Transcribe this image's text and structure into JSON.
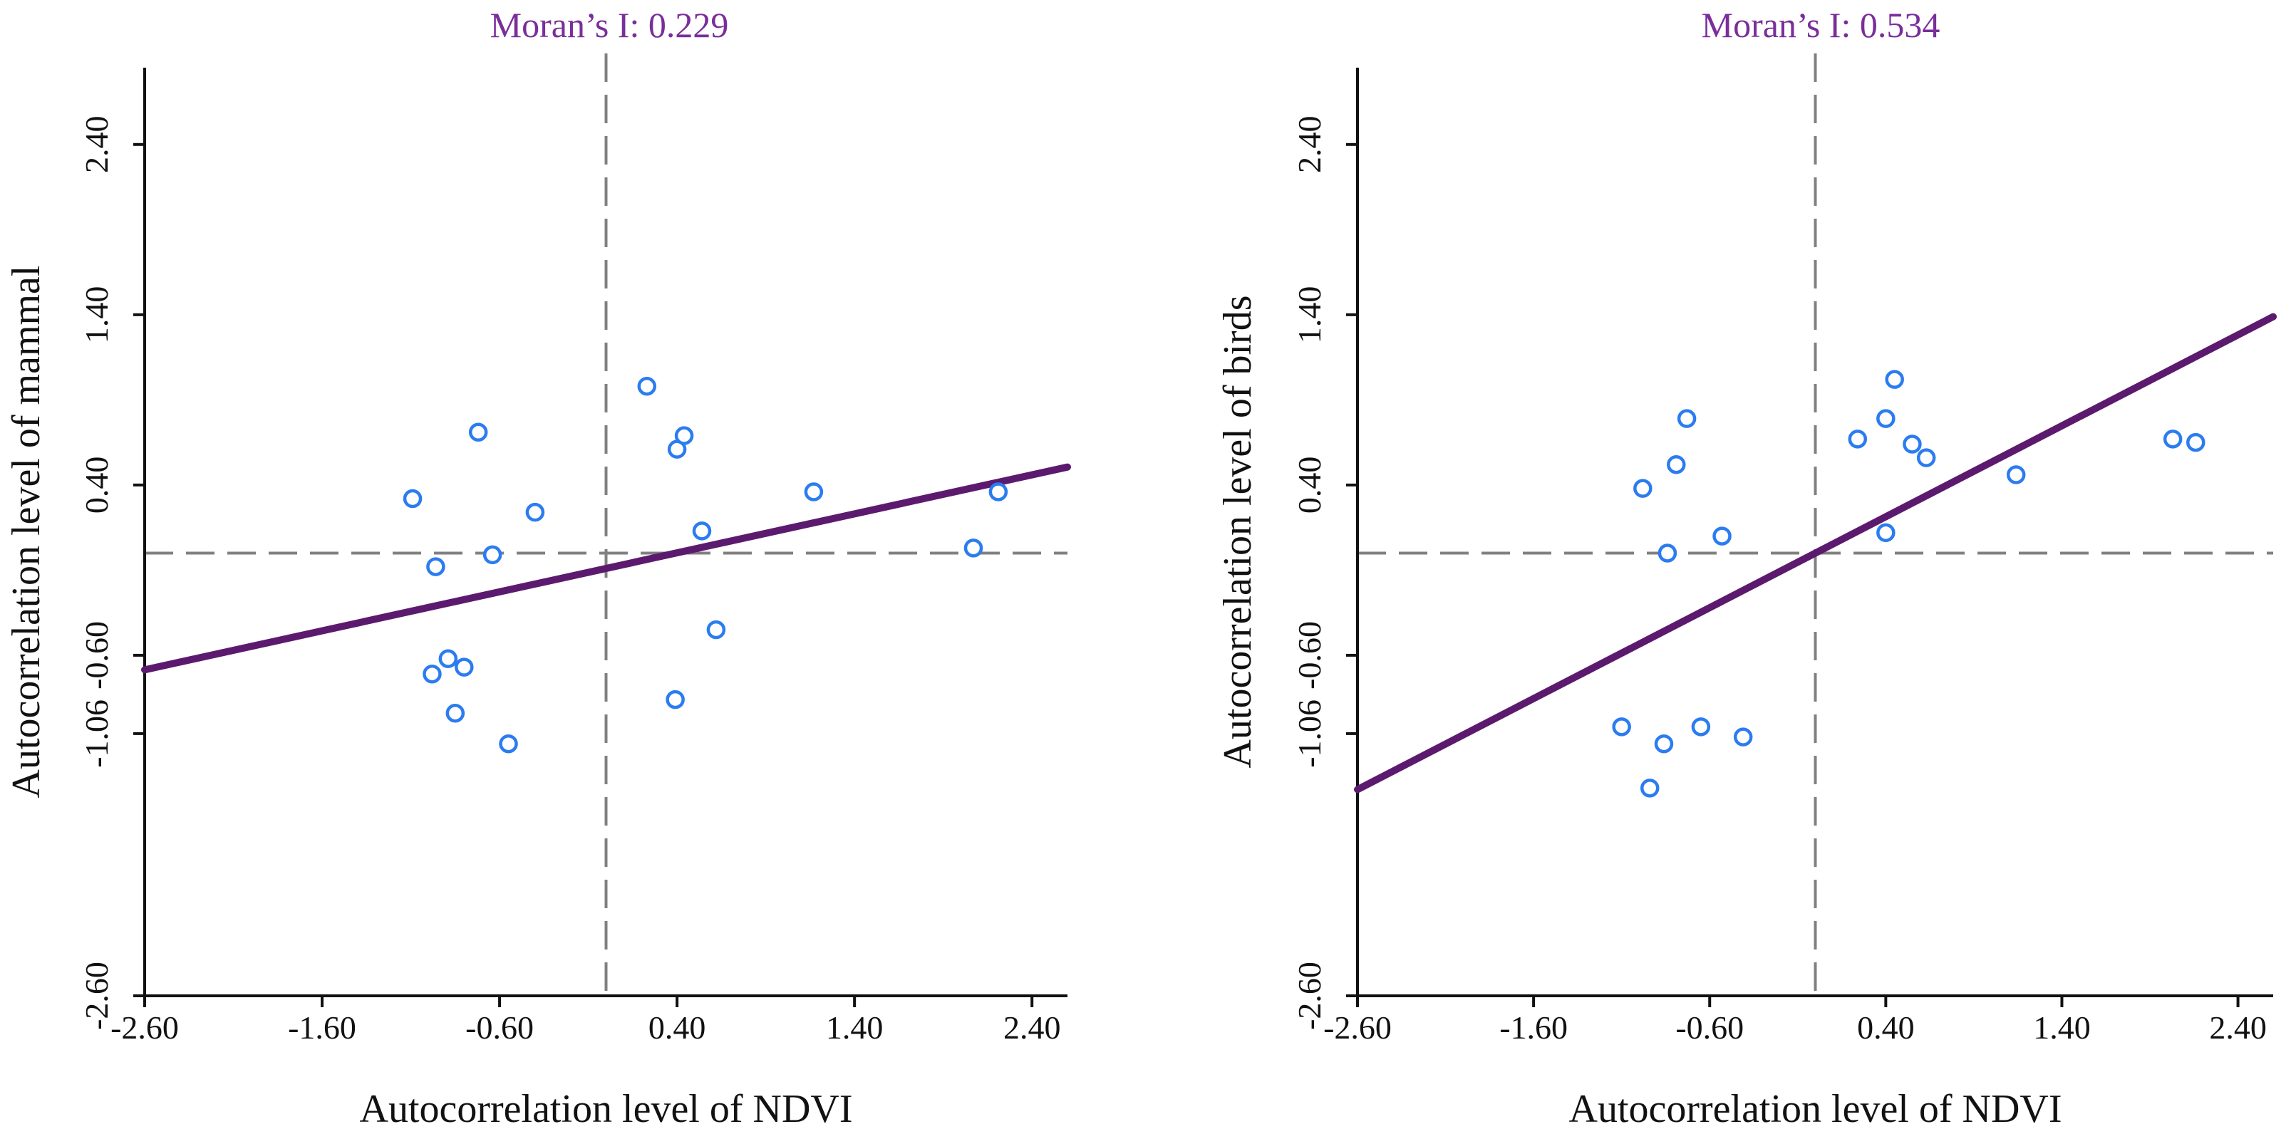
{
  "chart_data": [
    {
      "type": "scatter",
      "title": "Moran’s I: 0.229",
      "xlabel": "Autocorrelation level of NDVI",
      "ylabel": "Autocorrelation level of mammal",
      "xlim": [
        -2.6,
        2.6
      ],
      "ylim": [
        -2.6,
        2.6
      ],
      "xticks": [
        -2.6,
        -1.6,
        -0.6,
        0.4,
        1.4,
        2.4
      ],
      "xtick_labels": [
        "-2.60",
        "-1.60",
        "-0.60",
        "0.40",
        "1.40",
        "2.40"
      ],
      "yticks": [
        -2.6,
        -1.06,
        -0.6,
        0.4,
        1.4,
        2.4
      ],
      "ytick_labels": [
        "-2.60",
        "-1.06",
        "-0.60",
        "0.40",
        "1.40",
        "2.40"
      ],
      "reference_lines": {
        "x": 0.0,
        "y": 0.0
      },
      "fit_line": {
        "slope": 0.229,
        "intercept": -0.09
      },
      "grid": false,
      "series": [
        {
          "points": [
            [
              -1.09,
              0.32
            ],
            [
              -0.96,
              -0.08
            ],
            [
              -0.98,
              -0.71
            ],
            [
              -0.89,
              -0.62
            ],
            [
              -0.85,
              -0.94
            ],
            [
              -0.8,
              -0.67
            ],
            [
              -0.72,
              0.71
            ],
            [
              -0.64,
              -0.01
            ],
            [
              -0.55,
              -1.12
            ],
            [
              -0.4,
              0.24
            ],
            [
              0.23,
              0.98
            ],
            [
              0.4,
              0.61
            ],
            [
              0.44,
              0.69
            ],
            [
              0.54,
              0.13
            ],
            [
              0.62,
              -0.45
            ],
            [
              0.39,
              -0.86
            ],
            [
              1.17,
              0.36
            ],
            [
              2.07,
              0.03
            ],
            [
              2.21,
              0.36
            ]
          ]
        }
      ]
    },
    {
      "type": "scatter",
      "title": "Moran’s I: 0.534",
      "xlabel": "Autocorrelation level of NDVI",
      "ylabel": "Autocorrelation level of birds",
      "xlim": [
        -2.6,
        2.6
      ],
      "ylim": [
        -2.6,
        2.6
      ],
      "xticks": [
        -2.6,
        -1.6,
        -0.6,
        0.4,
        1.4,
        2.4
      ],
      "xtick_labels": [
        "-2.60",
        "-1.60",
        "-0.60",
        "0.40",
        "1.40",
        "2.40"
      ],
      "yticks": [
        -2.6,
        -1.06,
        -0.6,
        0.4,
        1.4,
        2.4
      ],
      "ytick_labels": [
        "-2.60",
        "-1.06",
        "-0.60",
        "0.40",
        "1.40",
        "2.40"
      ],
      "reference_lines": {
        "x": 0.0,
        "y": 0.0
      },
      "fit_line": {
        "slope": 0.534,
        "intercept": 0.0
      },
      "grid": false,
      "series": [
        {
          "points": [
            [
              -1.1,
              -1.02
            ],
            [
              -0.86,
              -1.12
            ],
            [
              -0.94,
              -1.38
            ],
            [
              -0.65,
              -1.02
            ],
            [
              -0.41,
              -1.08
            ],
            [
              -0.98,
              0.38
            ],
            [
              -0.84,
              0.0
            ],
            [
              -0.79,
              0.52
            ],
            [
              -0.73,
              0.79
            ],
            [
              -0.53,
              0.1
            ],
            [
              0.24,
              0.67
            ],
            [
              0.4,
              0.12
            ],
            [
              0.4,
              0.79
            ],
            [
              0.45,
              1.02
            ],
            [
              0.55,
              0.64
            ],
            [
              0.63,
              0.56
            ],
            [
              1.14,
              0.46
            ],
            [
              2.03,
              0.67
            ],
            [
              2.16,
              0.65
            ]
          ]
        }
      ]
    }
  ]
}
